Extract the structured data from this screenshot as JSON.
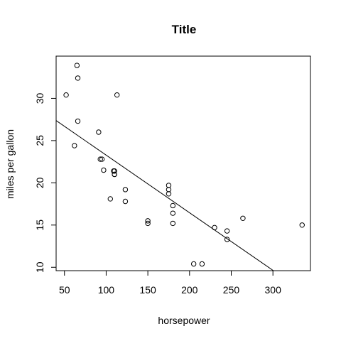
{
  "chart_data": {
    "type": "scatter",
    "title": "Title",
    "xlabel": "horsepower",
    "ylabel": "miles per gallon",
    "xlim": [
      40,
      345
    ],
    "ylim": [
      9.6,
      35
    ],
    "xticks": [
      "50",
      "100",
      "150",
      "200",
      "250",
      "300"
    ],
    "yticks": [
      "10",
      "15",
      "20",
      "25",
      "30"
    ],
    "grid": false,
    "legend": "none",
    "point_color": "#000000",
    "line_color": "#000000",
    "points": [
      {
        "x": 110,
        "y": 21.0
      },
      {
        "x": 110,
        "y": 21.0
      },
      {
        "x": 93,
        "y": 22.8
      },
      {
        "x": 110,
        "y": 21.4
      },
      {
        "x": 175,
        "y": 18.7
      },
      {
        "x": 105,
        "y": 18.1
      },
      {
        "x": 245,
        "y": 14.3
      },
      {
        "x": 62,
        "y": 24.4
      },
      {
        "x": 95,
        "y": 22.8
      },
      {
        "x": 123,
        "y": 19.2
      },
      {
        "x": 123,
        "y": 17.8
      },
      {
        "x": 180,
        "y": 16.4
      },
      {
        "x": 180,
        "y": 17.3
      },
      {
        "x": 180,
        "y": 15.2
      },
      {
        "x": 205,
        "y": 10.4
      },
      {
        "x": 215,
        "y": 10.4
      },
      {
        "x": 230,
        "y": 14.7
      },
      {
        "x": 66,
        "y": 32.4
      },
      {
        "x": 52,
        "y": 30.4
      },
      {
        "x": 65,
        "y": 33.9
      },
      {
        "x": 97,
        "y": 21.5
      },
      {
        "x": 150,
        "y": 15.5
      },
      {
        "x": 150,
        "y": 15.2
      },
      {
        "x": 245,
        "y": 13.3
      },
      {
        "x": 175,
        "y": 19.2
      },
      {
        "x": 66,
        "y": 27.3
      },
      {
        "x": 91,
        "y": 26.0
      },
      {
        "x": 113,
        "y": 30.4
      },
      {
        "x": 264,
        "y": 15.8
      },
      {
        "x": 175,
        "y": 19.7
      },
      {
        "x": 335,
        "y": 15.0
      },
      {
        "x": 109,
        "y": 21.4
      }
    ],
    "regression_line": {
      "intercept": 30.1,
      "slope": -0.0682
    }
  }
}
